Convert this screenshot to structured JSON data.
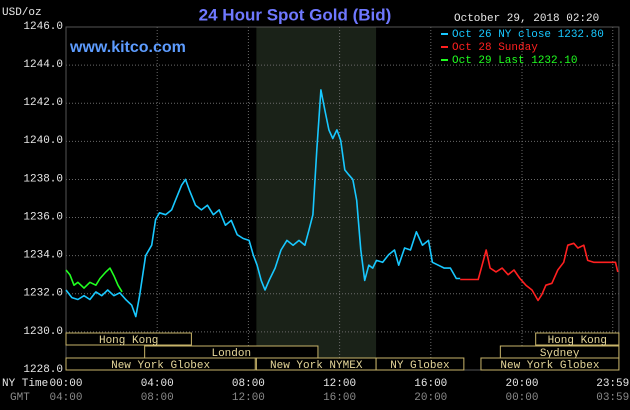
{
  "chart_data": {
    "type": "line",
    "title": "24 Hour Spot Gold (Bid)",
    "y_label": "USD/oz",
    "timestamp": "October 29, 2018 02:20",
    "website": "www.kitco.com",
    "x_label": "NY Time",
    "x2_label": "GMT",
    "xlim": [
      0,
      24.25
    ],
    "ylim": [
      1228,
      1246
    ],
    "xticks": [
      {
        "value": 0,
        "label": "00:00"
      },
      {
        "value": 4,
        "label": "04:00"
      },
      {
        "value": 8,
        "label": "08:00"
      },
      {
        "value": 12,
        "label": "12:00"
      },
      {
        "value": 16,
        "label": "16:00"
      },
      {
        "value": 20,
        "label": "20:00"
      },
      {
        "value": 23.98,
        "label": "23:59"
      }
    ],
    "x2tick_labels": [
      "04:00",
      "08:00",
      "12:00",
      "16:00",
      "20:00",
      "00:00",
      "03:59"
    ],
    "yticks": [
      {
        "value": 1228,
        "label": "1228.0"
      },
      {
        "value": 1230,
        "label": "1230.0"
      },
      {
        "value": 1232,
        "label": "1232.0"
      },
      {
        "value": 1234,
        "label": "1234.0"
      },
      {
        "value": 1236,
        "label": "1236.0"
      },
      {
        "value": 1238,
        "label": "1238.0"
      },
      {
        "value": 1240,
        "label": "1240.0"
      },
      {
        "value": 1242,
        "label": "1242.0"
      },
      {
        "value": 1244,
        "label": "1244.0"
      },
      {
        "value": 1246,
        "label": "1246.0"
      }
    ],
    "grid": true,
    "highlight": [
      8.35,
      13.6
    ],
    "sessions": [
      {
        "label": "Hong Kong",
        "start": 0,
        "end": 5.5,
        "row": 0
      },
      {
        "label": "London",
        "start": 3.45,
        "end": 11.05,
        "row": 1
      },
      {
        "label": "New York Globex",
        "start": 0,
        "end": 8.3,
        "row": 2
      },
      {
        "label": "New York NYMEX",
        "start": 8.35,
        "end": 13.6,
        "row": 2
      },
      {
        "label": "NY Globex",
        "start": 13.6,
        "end": 17.45,
        "row": 2
      },
      {
        "label": "Hong Kong",
        "start": 20.6,
        "end": 24.25,
        "row": 0
      },
      {
        "label": "Sydney",
        "start": 19.05,
        "end": 24.25,
        "row": 1
      },
      {
        "label": "New York Globex",
        "start": 18.2,
        "end": 24.25,
        "row": 2
      }
    ],
    "series": [
      {
        "name": "Oct 26 NY close 1232.80",
        "color": "#18c8ff",
        "x": [
          0,
          0.26,
          0.52,
          0.79,
          1.05,
          1.31,
          1.57,
          1.83,
          2.1,
          2.36,
          2.62,
          2.88,
          3.06,
          3.23,
          3.49,
          3.76,
          3.93,
          4.1,
          4.37,
          4.63,
          4.8,
          5.07,
          5.24,
          5.41,
          5.68,
          5.94,
          6.2,
          6.46,
          6.72,
          6.99,
          7.25,
          7.51,
          7.77,
          8.03,
          8.21,
          8.38,
          8.56,
          8.73,
          8.91,
          9.17,
          9.43,
          9.69,
          9.96,
          10.22,
          10.48,
          10.66,
          10.83,
          11.0,
          11.18,
          11.35,
          11.53,
          11.7,
          11.88,
          12.05,
          12.23,
          12.4,
          12.58,
          12.75,
          12.93,
          13.1,
          13.28,
          13.45,
          13.62,
          13.89,
          14.15,
          14.41,
          14.59,
          14.85,
          15.11,
          15.37,
          15.63,
          15.9,
          16.07,
          16.33,
          16.59,
          16.86,
          17.12,
          17.29
        ],
        "values": [
          1232.2,
          1231.8,
          1231.7,
          1231.9,
          1231.7,
          1232.1,
          1231.9,
          1232.2,
          1231.9,
          1232.05,
          1231.7,
          1231.4,
          1230.8,
          1231.9,
          1234.0,
          1234.55,
          1235.9,
          1236.25,
          1236.15,
          1236.4,
          1236.9,
          1237.7,
          1238.0,
          1237.45,
          1236.65,
          1236.4,
          1236.65,
          1236.15,
          1236.4,
          1235.6,
          1235.85,
          1235.1,
          1234.9,
          1234.8,
          1234.05,
          1233.5,
          1232.7,
          1232.2,
          1232.7,
          1233.35,
          1234.3,
          1234.8,
          1234.55,
          1234.8,
          1234.55,
          1235.35,
          1236.15,
          1239.55,
          1242.7,
          1241.65,
          1240.6,
          1240.15,
          1240.6,
          1240.05,
          1238.5,
          1238.25,
          1238.0,
          1236.9,
          1234.3,
          1232.7,
          1233.5,
          1233.35,
          1233.75,
          1233.65,
          1234.05,
          1234.3,
          1233.5,
          1234.4,
          1234.3,
          1235.25,
          1234.55,
          1234.8,
          1233.65,
          1233.5,
          1233.35,
          1233.35,
          1232.8,
          1232.8
        ]
      },
      {
        "name": "Oct 28 Sunday",
        "color": "#ff2020",
        "x": [
          17.29,
          18.08,
          18.25,
          18.43,
          18.6,
          18.86,
          19.13,
          19.39,
          19.65,
          19.91,
          20.17,
          20.44,
          20.7,
          20.87,
          21.05,
          21.31,
          21.57,
          21.83,
          22.01,
          22.27,
          22.45,
          22.71,
          22.88,
          23.14,
          23.6,
          23.95,
          24.1,
          24.2
        ],
        "values": [
          1232.75,
          1232.75,
          1233.5,
          1234.3,
          1233.35,
          1233.15,
          1233.35,
          1233.0,
          1233.25,
          1232.8,
          1232.45,
          1232.2,
          1231.65,
          1231.95,
          1232.45,
          1232.55,
          1233.25,
          1233.65,
          1234.55,
          1234.65,
          1234.4,
          1234.55,
          1233.75,
          1233.65,
          1233.65,
          1233.65,
          1233.65,
          1233.15
        ]
      },
      {
        "name": "Oct 29 Last 1232.10",
        "color": "#20ff20",
        "x": [
          0,
          0.17,
          0.35,
          0.52,
          0.79,
          1.05,
          1.31,
          1.49,
          1.75,
          1.93,
          2.1,
          2.28,
          2.46
        ],
        "values": [
          1233.25,
          1233.0,
          1232.45,
          1232.6,
          1232.3,
          1232.6,
          1232.45,
          1232.8,
          1233.15,
          1233.35,
          1232.95,
          1232.45,
          1232.1
        ]
      }
    ]
  }
}
